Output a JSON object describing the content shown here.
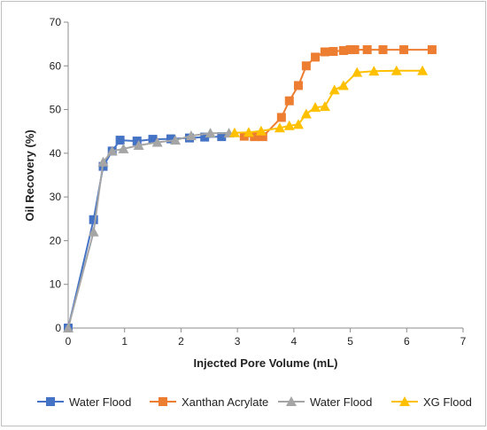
{
  "chart_data": {
    "type": "scatter",
    "title": "",
    "xlabel": "Injected Pore Volume (mL)",
    "ylabel": "Oil Recovery (%)",
    "xlim": [
      0,
      7
    ],
    "ylim": [
      0,
      70
    ],
    "xticks": [
      "0",
      "1",
      "2",
      "3",
      "4",
      "5",
      "6",
      "7"
    ],
    "yticks": [
      "0",
      "10",
      "20",
      "30",
      "40",
      "50",
      "60",
      "70"
    ],
    "grid": false,
    "legend_position": "bottom",
    "series": [
      {
        "name": "Water Flood",
        "color": "#4472C4",
        "marker": "square",
        "points": [
          [
            0,
            0
          ],
          [
            0.45,
            24.8
          ],
          [
            0.62,
            37
          ],
          [
            0.78,
            40.5
          ],
          [
            0.92,
            43
          ],
          [
            1.22,
            42.8
          ],
          [
            1.5,
            43.2
          ],
          [
            1.82,
            43.3
          ],
          [
            2.15,
            43.5
          ],
          [
            2.42,
            43.7
          ],
          [
            2.72,
            43.8
          ]
        ]
      },
      {
        "name": "Xanthan Acrylate",
        "color": "#ED7D31",
        "marker": "square",
        "points": [
          [
            3.12,
            43.9
          ],
          [
            3.3,
            43.8
          ],
          [
            3.45,
            43.8
          ],
          [
            3.78,
            48.2
          ],
          [
            3.92,
            52
          ],
          [
            4.08,
            55.5
          ],
          [
            4.22,
            60
          ],
          [
            4.38,
            62
          ],
          [
            4.55,
            63.2
          ],
          [
            4.7,
            63.3
          ],
          [
            4.88,
            63.5
          ],
          [
            5.0,
            63.7
          ],
          [
            5.08,
            63.7
          ],
          [
            5.3,
            63.7
          ],
          [
            5.58,
            63.7
          ],
          [
            5.95,
            63.7
          ],
          [
            6.45,
            63.7
          ]
        ]
      },
      {
        "name": "Water Flood",
        "color": "#A5A5A5",
        "marker": "triangle",
        "points": [
          [
            0,
            0
          ],
          [
            0.45,
            22
          ],
          [
            0.62,
            38
          ],
          [
            0.78,
            40.5
          ],
          [
            0.98,
            41
          ],
          [
            1.25,
            41.8
          ],
          [
            1.58,
            42.5
          ],
          [
            1.9,
            43
          ],
          [
            2.18,
            44
          ],
          [
            2.52,
            44.6
          ],
          [
            2.85,
            44.6
          ]
        ]
      },
      {
        "name": "XG Flood",
        "color": "#FFC000",
        "marker": "triangle",
        "points": [
          [
            2.95,
            44.7
          ],
          [
            3.2,
            44.8
          ],
          [
            3.42,
            45.1
          ],
          [
            3.75,
            45.8
          ],
          [
            3.92,
            46.3
          ],
          [
            4.08,
            46.6
          ],
          [
            4.22,
            49
          ],
          [
            4.38,
            50.5
          ],
          [
            4.55,
            50.7
          ],
          [
            4.72,
            54.5
          ],
          [
            4.88,
            55.5
          ],
          [
            5.12,
            58.5
          ],
          [
            5.42,
            58.8
          ],
          [
            5.82,
            58.9
          ],
          [
            6.28,
            58.9
          ]
        ]
      }
    ]
  }
}
